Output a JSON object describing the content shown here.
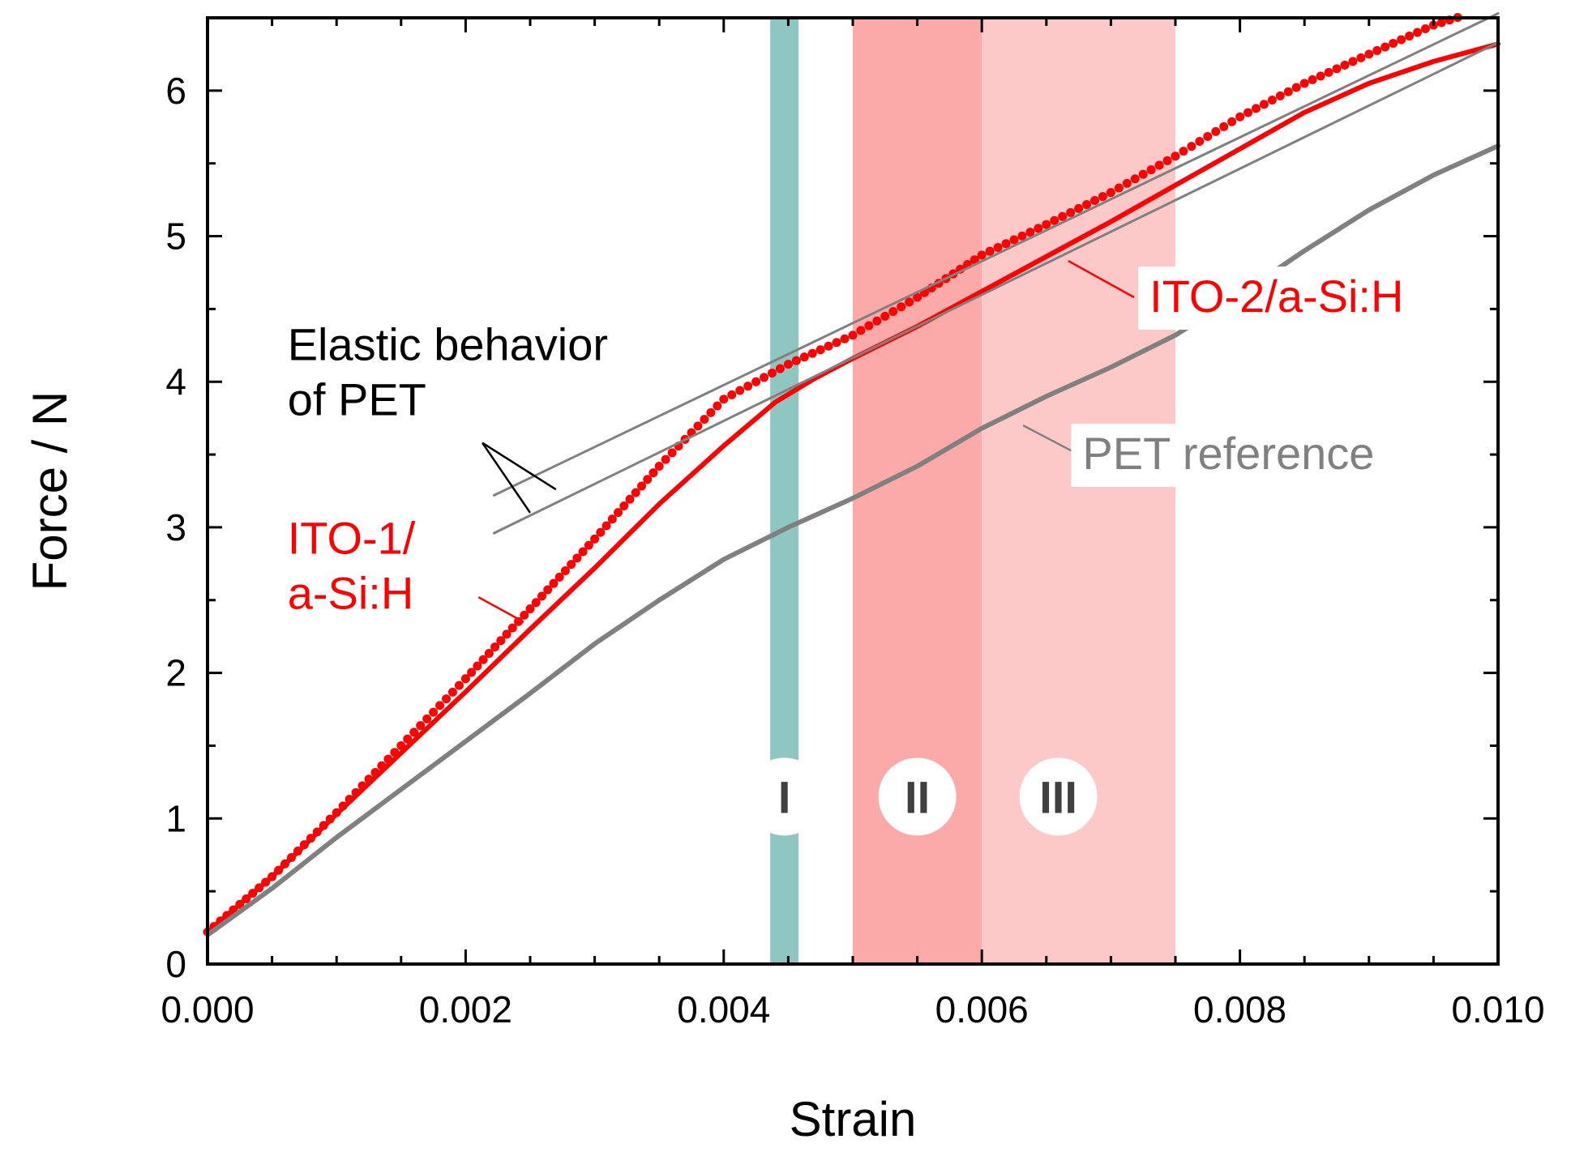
{
  "chart_data": {
    "type": "scatter",
    "title": "",
    "xlabel": "Strain",
    "ylabel": "Force / N",
    "xlim": [
      0,
      0.01
    ],
    "ylim": [
      0,
      6.5
    ],
    "x_ticks": [
      "0.000",
      "0.002",
      "0.004",
      "0.006",
      "0.008",
      "0.010"
    ],
    "x_tick_values": [
      0,
      0.002,
      0.004,
      0.006,
      0.008,
      0.01
    ],
    "y_ticks": [
      "0",
      "1",
      "2",
      "3",
      "4",
      "5",
      "6"
    ],
    "y_tick_values": [
      0,
      1,
      2,
      3,
      4,
      5,
      6
    ],
    "grid": false,
    "regions": [
      {
        "label": "I",
        "x0": 0.00436,
        "x1": 0.00458,
        "color": "#8fc6c2",
        "label_y": 1.15
      },
      {
        "label": "II",
        "x0": 0.005,
        "x1": 0.006,
        "color": "#fba9a9",
        "label_y": 1.15
      },
      {
        "label": "III",
        "x0": 0.006,
        "x1": 0.0075,
        "color": "#fdc8c8",
        "label_y": 1.15
      }
    ],
    "series": [
      {
        "name": "ITO-1/ a-Si:H",
        "color": "#ff0000",
        "style": "dots",
        "x": [
          0,
          0.0005,
          0.001,
          0.0015,
          0.002,
          0.0025,
          0.003,
          0.0035,
          0.004,
          0.0045,
          0.005,
          0.0055,
          0.006,
          0.0065,
          0.007,
          0.0075,
          0.008,
          0.0085,
          0.009,
          0.0095,
          0.00975
        ],
        "y": [
          0.22,
          0.6,
          1.04,
          1.5,
          1.96,
          2.44,
          2.92,
          3.42,
          3.88,
          4.12,
          4.32,
          4.58,
          4.87,
          5.08,
          5.3,
          5.55,
          5.82,
          6.05,
          6.25,
          6.45,
          6.52
        ]
      },
      {
        "name": "ITO-2/a-Si:H",
        "color": "#ff0000",
        "style": "line",
        "x": [
          0,
          0.0005,
          0.001,
          0.0015,
          0.002,
          0.0025,
          0.003,
          0.0035,
          0.004,
          0.0044,
          0.0047,
          0.005,
          0.0055,
          0.006,
          0.0065,
          0.007,
          0.0075,
          0.008,
          0.0085,
          0.009,
          0.0095,
          0.01
        ],
        "y": [
          0.22,
          0.6,
          1.03,
          1.45,
          1.87,
          2.3,
          2.72,
          3.16,
          3.56,
          3.86,
          4.02,
          4.16,
          4.38,
          4.62,
          4.86,
          5.1,
          5.35,
          5.6,
          5.85,
          6.05,
          6.2,
          6.32
        ]
      },
      {
        "name": "PET reference",
        "color": "#808080",
        "style": "line",
        "x": [
          0,
          0.0005,
          0.001,
          0.0015,
          0.002,
          0.0025,
          0.003,
          0.0035,
          0.004,
          0.0045,
          0.005,
          0.0055,
          0.006,
          0.0065,
          0.007,
          0.0075,
          0.008,
          0.0085,
          0.009,
          0.0095,
          0.01
        ],
        "y": [
          0.2,
          0.52,
          0.87,
          1.2,
          1.53,
          1.86,
          2.2,
          2.5,
          2.78,
          3.0,
          3.2,
          3.42,
          3.68,
          3.9,
          4.1,
          4.32,
          4.6,
          4.9,
          5.18,
          5.42,
          5.62
        ]
      },
      {
        "name": "Elastic behavior of PET",
        "color": "#808080",
        "style": "fit",
        "x": [
          0.00222,
          0.01
        ],
        "y": [
          3.22,
          6.53
        ]
      },
      {
        "name": "Elastic behavior of PET",
        "color": "#808080",
        "style": "fit",
        "x": [
          0.00222,
          0.01
        ],
        "y": [
          2.96,
          6.33
        ]
      }
    ],
    "annotations": [
      {
        "lines": [
          "Elastic behavior",
          "of PET"
        ],
        "color": "#000000",
        "x": 0.00062,
        "y": 4.15,
        "boxed": false,
        "leaders": [
          {
            "from": [
              0.00213,
              3.58
            ],
            "to": [
              0.0027,
              3.26
            ]
          },
          {
            "from": [
              0.00213,
              3.58
            ],
            "to": [
              0.0025,
              3.1
            ]
          }
        ]
      },
      {
        "lines": [
          "ITO-1/",
          "a-Si:H"
        ],
        "color": "#ff0000",
        "x": 0.00062,
        "y": 2.82,
        "boxed": false,
        "leaders": [
          {
            "from": [
              0.0021,
              2.52
            ],
            "to": [
              0.00245,
              2.35
            ]
          }
        ]
      },
      {
        "lines": [
          "ITO-2/a-Si:H"
        ],
        "color": "#ff0000",
        "x": 0.0073,
        "y": 4.48,
        "boxed": true,
        "leaders": [
          {
            "from": [
              0.00718,
              4.58
            ],
            "to": [
              0.00667,
              4.83
            ]
          }
        ]
      },
      {
        "lines": [
          "PET reference"
        ],
        "color": "#808080",
        "x": 0.00678,
        "y": 3.4,
        "boxed": true,
        "leaders": [
          {
            "from": [
              0.00675,
              3.5
            ],
            "to": [
              0.00632,
              3.7
            ]
          }
        ]
      }
    ]
  }
}
